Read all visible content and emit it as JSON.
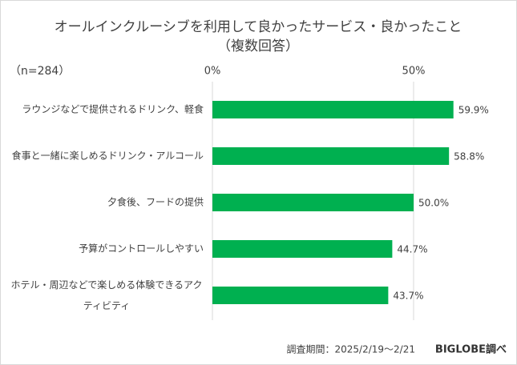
{
  "chart_data": {
    "type": "bar",
    "orientation": "horizontal",
    "title": "オールインクルーシブを利用して良かったサービス・良かったこと",
    "subtitle": "（複数回答）",
    "sample": "（n=284）",
    "categories": [
      "ラウンジなどで提供されるドリンク、軽食",
      "食事と一緒に楽しめるドリンク・アルコール",
      "夕食後、フードの提供",
      "予算がコントロールしやすい",
      "ホテル・周辺などで楽しめる体験できるアクティビティ"
    ],
    "values": [
      59.9,
      58.8,
      50.0,
      44.7,
      43.7
    ],
    "value_labels": [
      "59.9%",
      "58.8%",
      "50.0%",
      "44.7%",
      "43.7%"
    ],
    "color": "#00b050",
    "xlim": [
      0,
      70
    ],
    "xticks": [
      {
        "value": 0,
        "label": "0%"
      },
      {
        "value": 50,
        "label": "50%"
      }
    ],
    "grid": true,
    "source": "調査期間：2025/2/19～2/21",
    "credit": "BIGLOBE調べ"
  }
}
